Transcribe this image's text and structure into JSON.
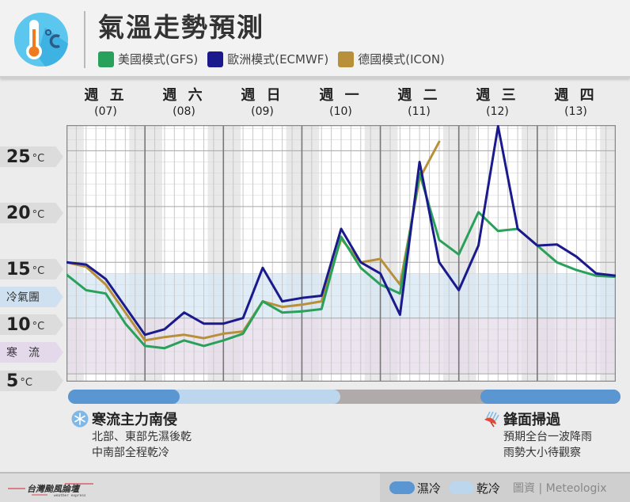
{
  "header": {
    "title": "氣溫走勢預測",
    "icon": "thermometer-celsius-icon",
    "legend": [
      {
        "label": "美國模式(GFS)",
        "color": "#2aa15a"
      },
      {
        "label": "歐洲模式(ECMWF)",
        "color": "#1a1a8c"
      },
      {
        "label": "德國模式(ICON)",
        "color": "#b8903a"
      }
    ]
  },
  "days": [
    {
      "weekday": "週 五",
      "date": "(07)"
    },
    {
      "weekday": "週 六",
      "date": "(08)"
    },
    {
      "weekday": "週 日",
      "date": "(09)"
    },
    {
      "weekday": "週 一",
      "date": "(10)"
    },
    {
      "weekday": "週 二",
      "date": "(11)"
    },
    {
      "weekday": "週 三",
      "date": "(12)"
    },
    {
      "weekday": "週 四",
      "date": "(13)"
    }
  ],
  "yaxis": {
    "t25": {
      "num": "25",
      "unit": "°C"
    },
    "t20": {
      "num": "20",
      "unit": "°C"
    },
    "t15": {
      "num": "15",
      "unit": "°C"
    },
    "cold_air": "冷氣團",
    "t10": {
      "num": "10",
      "unit": "°C"
    },
    "cold_wave": "寒流",
    "t5": {
      "num": "5",
      "unit": "°C"
    }
  },
  "chart_data": {
    "type": "line",
    "title": "氣溫走勢預測",
    "xlabel": "",
    "ylabel": "°C",
    "ylim": [
      5,
      27.3
    ],
    "grid": true,
    "legend_position": "top",
    "bands": [
      {
        "label": "冷氣團",
        "from": 10,
        "to": 14,
        "color": "#d6e6f3"
      },
      {
        "label": "寒流",
        "from": 5,
        "to": 10,
        "color": "#e6dcea"
      }
    ],
    "x_ticks": [
      "週五(07)",
      "週六(08)",
      "週日(09)",
      "週一(10)",
      "週二(11)",
      "週三(12)",
      "週四(13)"
    ],
    "x": [
      0,
      0.25,
      0.5,
      0.75,
      1,
      1.25,
      1.5,
      1.75,
      2,
      2.25,
      2.5,
      2.75,
      3,
      3.25,
      3.5,
      3.75,
      4,
      4.25,
      4.5,
      4.75,
      5,
      5.25,
      5.5,
      5.75,
      6,
      6.25,
      6.5,
      6.75,
      7
    ],
    "series": [
      {
        "name": "美國模式(GFS)",
        "color": "#2aa15a",
        "values": [
          13.9,
          12.5,
          12.2,
          9.5,
          7.5,
          7.3,
          8.0,
          7.5,
          8.0,
          8.6,
          11.5,
          10.5,
          10.6,
          10.8,
          17.3,
          14.5,
          13.0,
          12.2,
          23.0,
          17.0,
          15.7,
          19.5,
          17.8,
          18.0,
          16.5,
          15.0,
          14.3,
          13.8,
          13.7
        ]
      },
      {
        "name": "歐洲模式(ECMWF)",
        "color": "#1a1a8c",
        "values": [
          15.0,
          14.8,
          13.5,
          11.0,
          8.5,
          9.0,
          10.5,
          9.5,
          9.5,
          10.0,
          14.5,
          11.5,
          11.8,
          12.0,
          18.0,
          15.0,
          14.0,
          10.3,
          24.0,
          15.0,
          12.5,
          16.5,
          27.2,
          18.0,
          16.5,
          16.6,
          15.5,
          14.0,
          13.8
        ]
      },
      {
        "name": "德國模式(ICON)",
        "color": "#b8903a",
        "values": [
          15.0,
          14.6,
          13.0,
          10.5,
          8.0,
          8.3,
          8.5,
          8.2,
          8.6,
          8.8,
          11.5,
          11.0,
          11.2,
          11.5,
          17.1,
          15.0,
          15.3,
          13.0,
          22.5,
          25.8
        ]
      }
    ]
  },
  "phase_bar": [
    {
      "label": "濕冷",
      "from": 0,
      "to": 1.3,
      "color": "#5a96d2"
    },
    {
      "label": "乾冷",
      "from": 1.3,
      "to": 3.35,
      "color": "#bcd6ed"
    },
    {
      "label": "",
      "from": 3.35,
      "to": 5.25,
      "color": "#b0aaaa"
    },
    {
      "label": "濕冷",
      "from": 5.25,
      "to": 7.05,
      "color": "#5a96d2"
    }
  ],
  "notes": {
    "left": {
      "title": "寒流主力南侵",
      "lines": [
        "北部、東部先濕後乾",
        "中南部全程乾冷"
      ],
      "icon": "snowflake-icon"
    },
    "right": {
      "title": "鋒面掃過",
      "lines": [
        "預期全台一波降雨",
        "雨勢大小待觀察"
      ],
      "icon": "umbrella-rain-icon"
    }
  },
  "footer": {
    "brand": "台灣颱風論壇",
    "brand_sub": "weather express",
    "legend_wet": "濕冷",
    "legend_dry": "乾冷",
    "wet_color": "#5a96d2",
    "dry_color": "#bcd6ed",
    "credit": "圖資 | Meteologix"
  }
}
